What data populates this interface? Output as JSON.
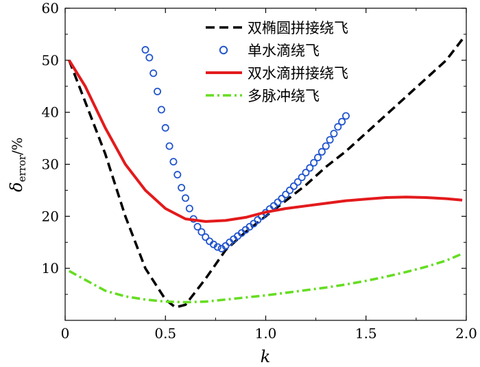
{
  "chart_data": {
    "type": "line",
    "xlabel": "k",
    "ylabel": {
      "symbol": "δ",
      "subscript": "error",
      "unit": "/%"
    },
    "xlim": [
      0,
      2.0
    ],
    "ylim": [
      0,
      60
    ],
    "xticks": [
      "0",
      "0.5",
      "1.0",
      "1.5",
      "2.0"
    ],
    "yticks": [
      "10",
      "20",
      "30",
      "40",
      "50",
      "60"
    ],
    "grid": false,
    "legend_position": "top-right",
    "series": [
      {
        "name": "双椭圆拼接绕飞",
        "color": "#000000",
        "style": "dashed",
        "points": [
          [
            0.02,
            50
          ],
          [
            0.1,
            42
          ],
          [
            0.2,
            32
          ],
          [
            0.3,
            20
          ],
          [
            0.4,
            10
          ],
          [
            0.5,
            4
          ],
          [
            0.55,
            2.5
          ],
          [
            0.6,
            3
          ],
          [
            0.7,
            8
          ],
          [
            0.8,
            13.5
          ],
          [
            0.9,
            17
          ],
          [
            1.0,
            20
          ],
          [
            1.1,
            23
          ],
          [
            1.2,
            26
          ],
          [
            1.3,
            29.5
          ],
          [
            1.4,
            32.5
          ],
          [
            1.5,
            36
          ],
          [
            1.6,
            39.5
          ],
          [
            1.7,
            43
          ],
          [
            1.8,
            46.5
          ],
          [
            1.9,
            50
          ],
          [
            1.98,
            54
          ]
        ]
      },
      {
        "name": "单水滴绕飞",
        "color": "#2255cc",
        "style": "markers",
        "points": [
          [
            0.4,
            52
          ],
          [
            0.42,
            50.5
          ],
          [
            0.44,
            47.5
          ],
          [
            0.46,
            44
          ],
          [
            0.48,
            40.5
          ],
          [
            0.5,
            37
          ],
          [
            0.52,
            33.5
          ],
          [
            0.54,
            30.5
          ],
          [
            0.56,
            28
          ],
          [
            0.58,
            25.5
          ],
          [
            0.6,
            23.5
          ],
          [
            0.62,
            21.5
          ],
          [
            0.64,
            19.5
          ],
          [
            0.66,
            18
          ],
          [
            0.68,
            17
          ],
          [
            0.7,
            16
          ],
          [
            0.72,
            15.2
          ],
          [
            0.74,
            14.6
          ],
          [
            0.76,
            14.1
          ],
          [
            0.78,
            13.8
          ],
          [
            0.8,
            14.3
          ],
          [
            0.82,
            15
          ],
          [
            0.84,
            15.6
          ],
          [
            0.86,
            16.2
          ],
          [
            0.88,
            16.8
          ],
          [
            0.9,
            17.4
          ],
          [
            0.92,
            18
          ],
          [
            0.94,
            18.6
          ],
          [
            0.96,
            19.3
          ],
          [
            0.98,
            20
          ],
          [
            1.0,
            20.7
          ],
          [
            1.02,
            21.4
          ],
          [
            1.04,
            22
          ],
          [
            1.06,
            22.7
          ],
          [
            1.08,
            23.4
          ],
          [
            1.1,
            24.2
          ],
          [
            1.12,
            25
          ],
          [
            1.14,
            25.8
          ],
          [
            1.16,
            26.6
          ],
          [
            1.18,
            27.5
          ],
          [
            1.2,
            28.4
          ],
          [
            1.22,
            29.3
          ],
          [
            1.24,
            30.3
          ],
          [
            1.26,
            31.3
          ],
          [
            1.28,
            32.4
          ],
          [
            1.3,
            33.5
          ],
          [
            1.32,
            34.7
          ],
          [
            1.34,
            35.9
          ],
          [
            1.36,
            37.2
          ],
          [
            1.38,
            38.2
          ],
          [
            1.4,
            39.3
          ]
        ]
      },
      {
        "name": "双水滴拼接绕飞",
        "color": "#e31a1c",
        "style": "solid",
        "points": [
          [
            0.02,
            50
          ],
          [
            0.1,
            45
          ],
          [
            0.2,
            37
          ],
          [
            0.3,
            30
          ],
          [
            0.4,
            25
          ],
          [
            0.5,
            21.5
          ],
          [
            0.6,
            19.5
          ],
          [
            0.7,
            19
          ],
          [
            0.8,
            19.2
          ],
          [
            0.9,
            19.8
          ],
          [
            1.0,
            20.8
          ],
          [
            1.1,
            21.5
          ],
          [
            1.2,
            22
          ],
          [
            1.3,
            22.5
          ],
          [
            1.4,
            23
          ],
          [
            1.5,
            23.3
          ],
          [
            1.6,
            23.6
          ],
          [
            1.7,
            23.7
          ],
          [
            1.8,
            23.6
          ],
          [
            1.9,
            23.4
          ],
          [
            1.98,
            23.1
          ]
        ]
      },
      {
        "name": "多脉冲绕飞",
        "color": "#66dd22",
        "style": "dashdot",
        "points": [
          [
            0.02,
            9.5
          ],
          [
            0.1,
            7.8
          ],
          [
            0.2,
            5.7
          ],
          [
            0.3,
            4.6
          ],
          [
            0.4,
            4
          ],
          [
            0.5,
            3.6
          ],
          [
            0.6,
            3.5
          ],
          [
            0.7,
            3.6
          ],
          [
            0.8,
            4
          ],
          [
            0.9,
            4.4
          ],
          [
            1.0,
            4.8
          ],
          [
            1.1,
            5.3
          ],
          [
            1.2,
            5.8
          ],
          [
            1.3,
            6.3
          ],
          [
            1.4,
            6.9
          ],
          [
            1.5,
            7.6
          ],
          [
            1.6,
            8.4
          ],
          [
            1.7,
            9.3
          ],
          [
            1.8,
            10.3
          ],
          [
            1.9,
            11.5
          ],
          [
            1.98,
            12.8
          ]
        ]
      }
    ]
  }
}
